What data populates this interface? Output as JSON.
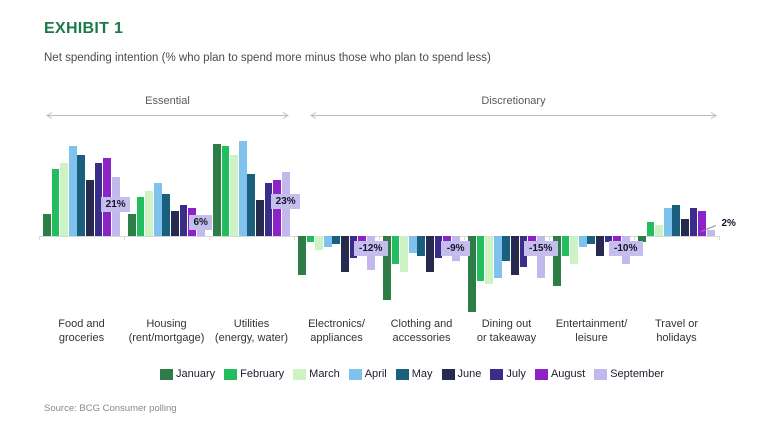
{
  "header": {
    "exhibit_label": "EXHIBIT 1",
    "subtitle": "Net spending intention (% who plan to spend more minus those who plan to spend less)"
  },
  "sections": {
    "essential": "Essential",
    "discretionary": "Discretionary"
  },
  "chart_data": {
    "type": "bar",
    "title": "Net spending intention (% who plan to spend more minus those who plan to spend less)",
    "unit": "%",
    "baseline": 0,
    "ylim": [
      -30,
      36
    ],
    "grid": false,
    "legend_position": "bottom",
    "group_sections": [
      {
        "label": "Essential",
        "category_indexes": [
          0,
          1,
          2
        ]
      },
      {
        "label": "Discretionary",
        "category_indexes": [
          3,
          4,
          5,
          6,
          7
        ]
      }
    ],
    "categories": [
      "Food and\ngroceries",
      "Housing\n(rent/mortgage)",
      "Utilities\n(energy, water)",
      "Electronics/\nappliances",
      "Clothing and\naccessories",
      "Dining out\nor takeaway",
      "Entertainment/\nleisure",
      "Travel or\nholidays"
    ],
    "series": [
      {
        "name": "January",
        "color": "#2e7d46",
        "values": [
          8,
          8,
          33,
          -14,
          -23,
          -27,
          -18,
          -2
        ]
      },
      {
        "name": "February",
        "color": "#22bd5f",
        "values": [
          24,
          14,
          32,
          -2,
          -10,
          -16,
          -7,
          5
        ]
      },
      {
        "name": "March",
        "color": "#cdf2c4",
        "values": [
          26,
          16,
          29,
          -5,
          -13,
          -17,
          -10,
          4
        ]
      },
      {
        "name": "April",
        "color": "#7fc2ee",
        "values": [
          32,
          19,
          34,
          -4,
          -6,
          -15,
          -4,
          10
        ]
      },
      {
        "name": "May",
        "color": "#1a5f7d",
        "values": [
          29,
          15,
          22,
          -3,
          -7,
          -9,
          -3,
          11
        ]
      },
      {
        "name": "June",
        "color": "#252a4e",
        "values": [
          20,
          9,
          13,
          -13,
          -13,
          -14,
          -7,
          6
        ]
      },
      {
        "name": "July",
        "color": "#3a2d89",
        "values": [
          26,
          11,
          19,
          -8,
          -8,
          -11,
          -2,
          10
        ]
      },
      {
        "name": "August",
        "color": "#8d22c8",
        "values": [
          28,
          10,
          20,
          -3,
          -4,
          -6,
          -3,
          9
        ]
      },
      {
        "name": "September",
        "color": "#c1b9ec",
        "values": [
          21,
          6,
          23,
          -12,
          -9,
          -15,
          -10,
          2
        ]
      }
    ],
    "data_labels": [
      {
        "category_index": 0,
        "series": "September",
        "text": "21%",
        "style": "boxed"
      },
      {
        "category_index": 1,
        "series": "September",
        "text": "6%",
        "style": "boxed"
      },
      {
        "category_index": 2,
        "series": "September",
        "text": "23%",
        "style": "boxed"
      },
      {
        "category_index": 3,
        "series": "September",
        "text": "-12%",
        "style": "boxed"
      },
      {
        "category_index": 4,
        "series": "September",
        "text": "-9%",
        "style": "boxed"
      },
      {
        "category_index": 5,
        "series": "September",
        "text": "-15%",
        "style": "boxed"
      },
      {
        "category_index": 6,
        "series": "September",
        "text": "-10%",
        "style": "boxed"
      },
      {
        "category_index": 7,
        "series": "September",
        "text": "2%",
        "style": "callout"
      }
    ],
    "label_box_color": "#c5bdeb"
  },
  "footer": {
    "source": "Source: BCG Consumer polling"
  },
  "colors": {
    "title": "#1c7a48",
    "subtitle": "#4b4b4b",
    "section_label": "#5a5a5a",
    "axis": "#d8d8d8",
    "category_label": "#333333",
    "legend_text": "#1c1c30",
    "source_text": "#8a8a8a",
    "data_label_text": "#14142b"
  }
}
